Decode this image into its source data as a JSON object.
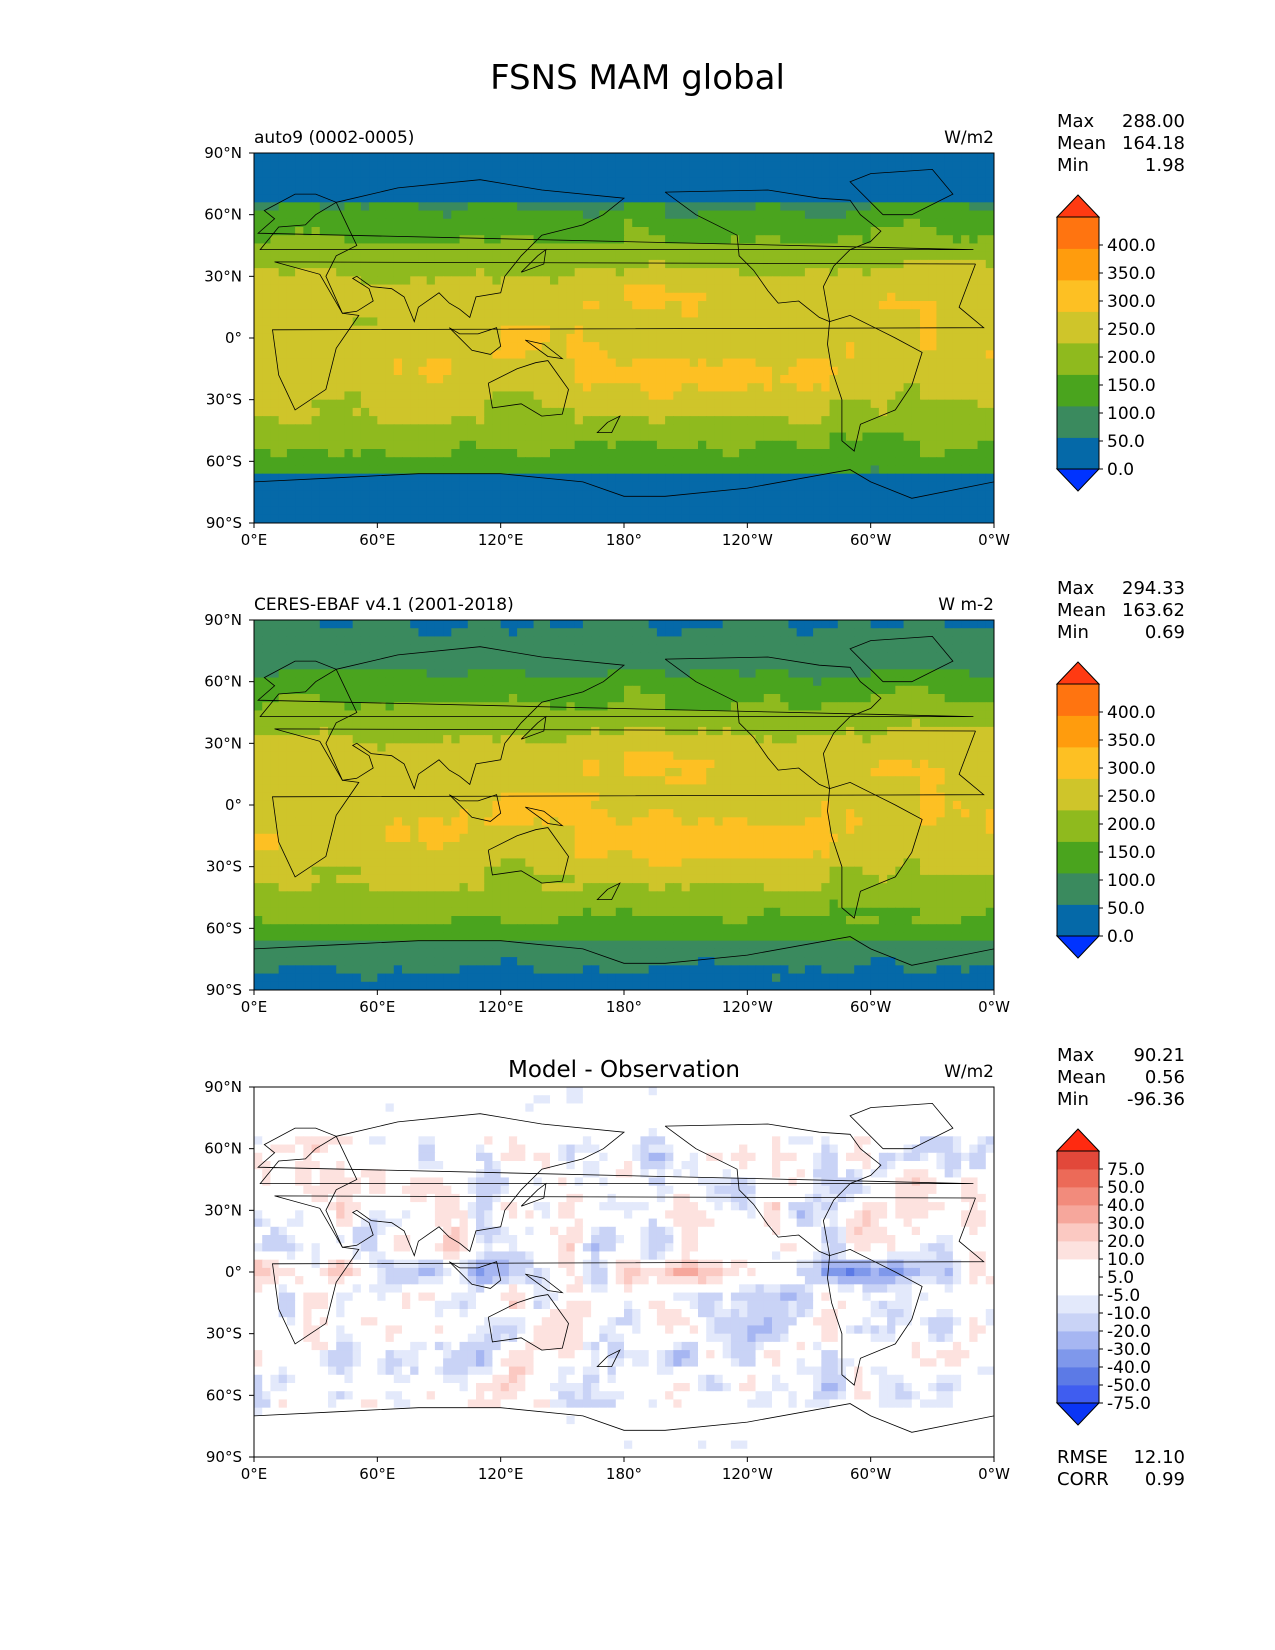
{
  "figure_title": "FSNS MAM global",
  "colors": {
    "levels_palette": [
      "#0033ff",
      "#0569a8",
      "#3a8a5e",
      "#4aa41e",
      "#8fba1e",
      "#cfc52a",
      "#fdc023",
      "#ff9c0d",
      "#ff7410",
      "#ff3a12"
    ],
    "diff_palette": [
      "#0a35f5",
      "#3f5df0",
      "#5c7ae6",
      "#7f98eb",
      "#a6b6f2",
      "#c9d3f6",
      "#e3e9fb",
      "#ffffff",
      "#ffffff",
      "#fde2df",
      "#fbc9c2",
      "#f6a79c",
      "#f28b7c",
      "#ec6a58",
      "#e2483a",
      "#ff2a10"
    ],
    "coastline": "#000000",
    "axis": "#000000"
  },
  "chart_data": [
    {
      "type": "heatmap",
      "title_left": "auto9 (0002-0005)",
      "title_center": "",
      "units": "W/m2",
      "stats": [
        {
          "label": "Max",
          "value": "288.00"
        },
        {
          "label": "Mean",
          "value": "164.18"
        },
        {
          "label": "Min",
          "value": "1.98"
        }
      ],
      "extra_stats": [],
      "xticks": [
        "0°E",
        "60°E",
        "120°E",
        "180°",
        "120°W",
        "60°W",
        "0°W"
      ],
      "yticks": [
        "90°N",
        "60°N",
        "30°N",
        "0°",
        "30°S",
        "60°S",
        "90°S"
      ],
      "colorbar": {
        "levels": [
          "0.0",
          "50.0",
          "100.0",
          "150.0",
          "200.0",
          "250.0",
          "300.0",
          "350.0",
          "400.0"
        ],
        "extend": "both"
      },
      "field": "model"
    },
    {
      "type": "heatmap",
      "title_left": "CERES-EBAF v4.1 (2001-2018)",
      "title_center": "",
      "units": "W m-2",
      "stats": [
        {
          "label": "Max",
          "value": "294.33"
        },
        {
          "label": "Mean",
          "value": "163.62"
        },
        {
          "label": "Min",
          "value": "0.69"
        }
      ],
      "extra_stats": [],
      "xticks": [
        "0°E",
        "60°E",
        "120°E",
        "180°",
        "120°W",
        "60°W",
        "0°W"
      ],
      "yticks": [
        "90°N",
        "60°N",
        "30°N",
        "0°",
        "30°S",
        "60°S",
        "90°S"
      ],
      "colorbar": {
        "levels": [
          "0.0",
          "50.0",
          "100.0",
          "150.0",
          "200.0",
          "250.0",
          "300.0",
          "350.0",
          "400.0"
        ],
        "extend": "both"
      },
      "field": "obs"
    },
    {
      "type": "heatmap",
      "title_left": "",
      "title_center": "Model - Observation",
      "units": "W/m2",
      "stats": [
        {
          "label": "Max",
          "value": "90.21"
        },
        {
          "label": "Mean",
          "value": "0.56"
        },
        {
          "label": "Min",
          "value": "-96.36"
        }
      ],
      "extra_stats": [
        {
          "label": "RMSE",
          "value": "12.10"
        },
        {
          "label": "CORR",
          "value": "0.99"
        }
      ],
      "xticks": [
        "0°E",
        "60°E",
        "120°E",
        "180°",
        "120°W",
        "60°W",
        "0°W"
      ],
      "yticks": [
        "90°N",
        "60°N",
        "30°N",
        "0°",
        "30°S",
        "60°S",
        "90°S"
      ],
      "colorbar": {
        "levels": [
          "-75.0",
          "-50.0",
          "-40.0",
          "-30.0",
          "-20.0",
          "-10.0",
          "-5.0",
          "5.0",
          "10.0",
          "20.0",
          "30.0",
          "40.0",
          "50.0",
          "75.0"
        ],
        "extend": "both"
      },
      "field": "diff"
    }
  ]
}
